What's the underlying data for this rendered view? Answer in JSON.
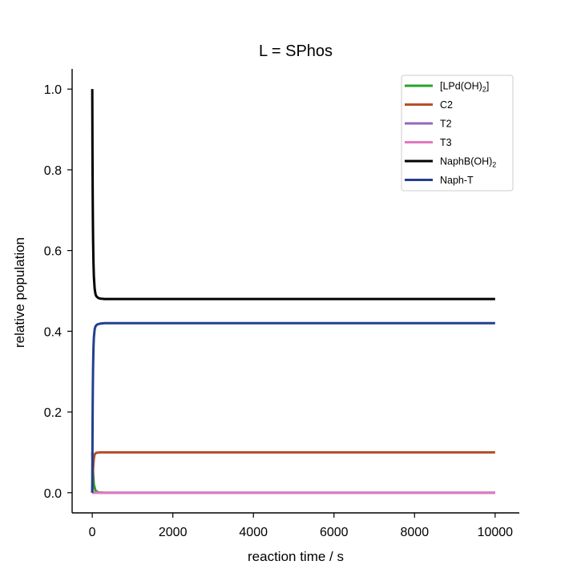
{
  "chart_data": {
    "type": "line",
    "title": "L = SPhos",
    "xlabel": "reaction time / s",
    "ylabel": "relative population",
    "xlim": [
      -500,
      10600
    ],
    "ylim": [
      -0.05,
      1.05
    ],
    "xticks": [
      0,
      2000,
      4000,
      6000,
      8000,
      10000
    ],
    "xtick_labels": [
      "0",
      "2000",
      "4000",
      "6000",
      "8000",
      "10000"
    ],
    "yticks": [
      0.0,
      0.2,
      0.4,
      0.6,
      0.8,
      1.0
    ],
    "ytick_labels": [
      "0.0",
      "0.2",
      "0.4",
      "0.6",
      "0.8",
      "1.0"
    ],
    "grid": false,
    "legend_position": "top-right",
    "series": [
      {
        "name": "[LPd(OH)2]",
        "label_main": "[LPd(OH)",
        "label_sub": "2",
        "label_tail": "]",
        "color": "#2ca02c",
        "x": [
          0,
          10,
          20,
          40,
          80,
          150,
          300,
          1000,
          10000
        ],
        "y": [
          0.1,
          0.08,
          0.05,
          0.02,
          0.005,
          0.001,
          0.0,
          0.0,
          0.0
        ]
      },
      {
        "name": "C2",
        "label_main": "C2",
        "label_sub": "",
        "label_tail": "",
        "color": "#b5502b",
        "x": [
          0,
          10,
          20,
          40,
          60,
          100,
          200,
          1000,
          10000
        ],
        "y": [
          0.0,
          0.03,
          0.06,
          0.085,
          0.095,
          0.099,
          0.1,
          0.1,
          0.1
        ]
      },
      {
        "name": "T2",
        "label_main": "T2",
        "label_sub": "",
        "label_tail": "",
        "color": "#9467bd",
        "x": [
          0,
          10,
          10000
        ],
        "y": [
          0.0,
          0.0,
          0.0
        ]
      },
      {
        "name": "T3",
        "label_main": "T3",
        "label_sub": "",
        "label_tail": "",
        "color": "#e377c2",
        "x": [
          0,
          10,
          10000
        ],
        "y": [
          0.0,
          0.0,
          0.0
        ]
      },
      {
        "name": "NaphB(OH)2",
        "label_main": "NaphB(OH)",
        "label_sub": "2",
        "label_tail": "",
        "color": "#000000",
        "x": [
          0,
          5,
          10,
          15,
          20,
          30,
          40,
          60,
          80,
          100,
          130,
          160,
          200,
          300,
          1000,
          10000
        ],
        "y": [
          1.0,
          0.85,
          0.75,
          0.68,
          0.63,
          0.57,
          0.535,
          0.505,
          0.492,
          0.487,
          0.484,
          0.482,
          0.481,
          0.48,
          0.48,
          0.48
        ]
      },
      {
        "name": "Naph-T",
        "label_main": "Naph-T",
        "label_sub": "",
        "label_tail": "",
        "color": "#233f8f",
        "x": [
          0,
          5,
          10,
          15,
          20,
          30,
          40,
          60,
          80,
          100,
          130,
          160,
          200,
          300,
          1000,
          10000
        ],
        "y": [
          0.0,
          0.12,
          0.21,
          0.27,
          0.31,
          0.36,
          0.385,
          0.405,
          0.412,
          0.415,
          0.417,
          0.418,
          0.419,
          0.42,
          0.42,
          0.42
        ]
      }
    ]
  }
}
